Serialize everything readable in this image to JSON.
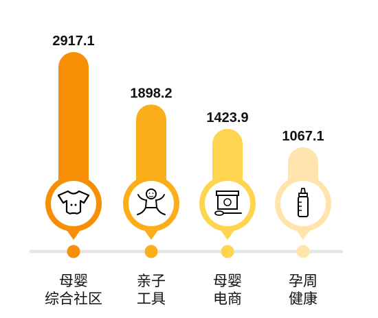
{
  "chart_data": {
    "type": "bar",
    "categories": [
      "母婴\n综合社区",
      "亲子\n工具",
      "母婴\n电商",
      "孕周\n健康"
    ],
    "values": [
      2917.1,
      1898.2,
      1423.9,
      1067.1
    ],
    "value_labels": [
      "2917.1",
      "1898.2",
      "1423.9",
      "1067.1"
    ],
    "icons": [
      "baby-onesie-icon",
      "baby-figure-icon",
      "food-container-spoon-icon",
      "baby-bottle-icon"
    ],
    "colors": [
      "#F68F06",
      "#FBAE1A",
      "#FFD54F",
      "#FFE5AD"
    ],
    "title": "",
    "xlabel": "",
    "ylabel": "",
    "ylim": [
      0,
      2917.1
    ],
    "grid": false,
    "legend": "none"
  }
}
